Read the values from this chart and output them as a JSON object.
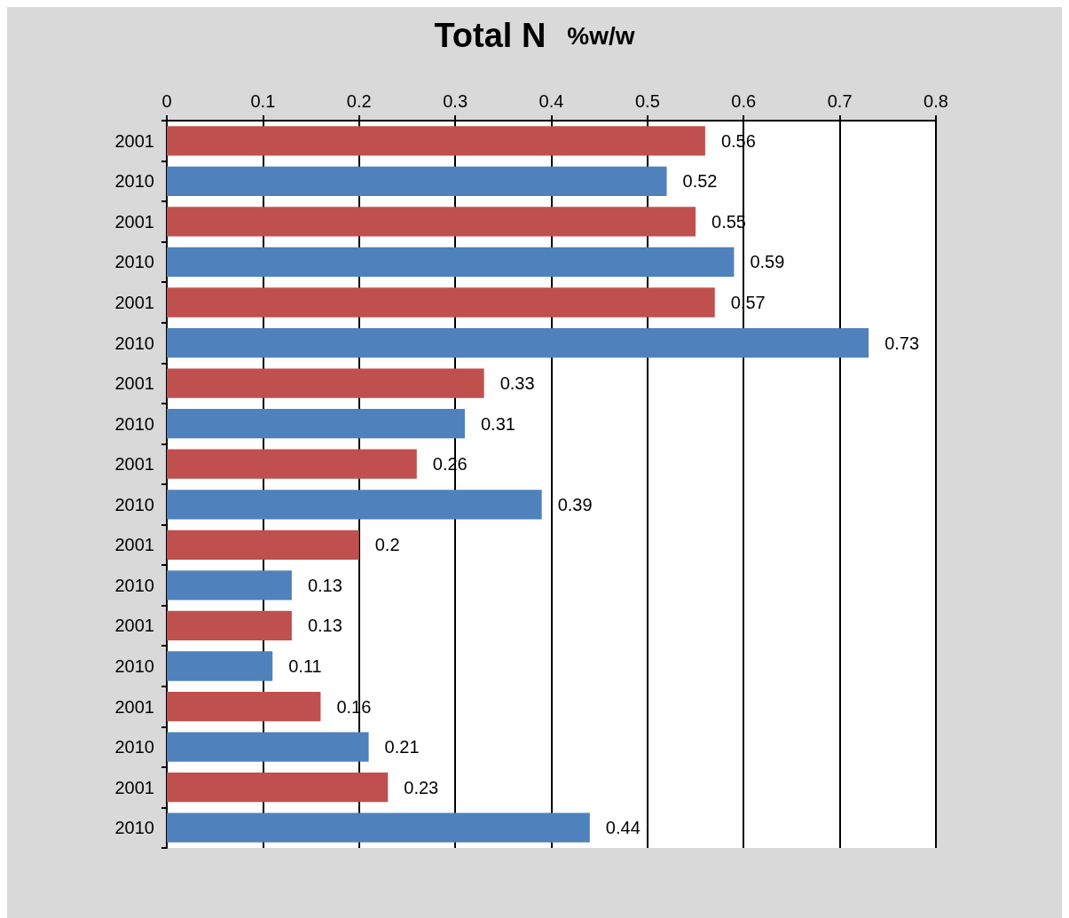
{
  "chart_data": {
    "type": "bar",
    "orientation": "horizontal",
    "title": "Total N",
    "subtitle": "%w/w",
    "categories": [
      "2001",
      "2010",
      "2001",
      "2010",
      "2001",
      "2010",
      "2001",
      "2010",
      "2001",
      "2010",
      "2001",
      "2010",
      "2001",
      "2010",
      "2001",
      "2010",
      "2001",
      "2010"
    ],
    "values": [
      0.56,
      0.52,
      0.55,
      0.59,
      0.57,
      0.73,
      0.33,
      0.31,
      0.26,
      0.39,
      0.2,
      0.13,
      0.13,
      0.11,
      0.16,
      0.21,
      0.23,
      0.44
    ],
    "colors": [
      "#c0504d",
      "#4f81bd",
      "#c0504d",
      "#4f81bd",
      "#c0504d",
      "#4f81bd",
      "#c0504d",
      "#4f81bd",
      "#c0504d",
      "#4f81bd",
      "#c0504d",
      "#4f81bd",
      "#c0504d",
      "#4f81bd",
      "#c0504d",
      "#4f81bd",
      "#c0504d",
      "#4f81bd"
    ],
    "xlim": [
      0,
      0.8
    ],
    "xticks": [
      0,
      0.1,
      0.2,
      0.3,
      0.4,
      0.5,
      0.6,
      0.7,
      0.8
    ],
    "grid": "x",
    "data_labels": true
  }
}
